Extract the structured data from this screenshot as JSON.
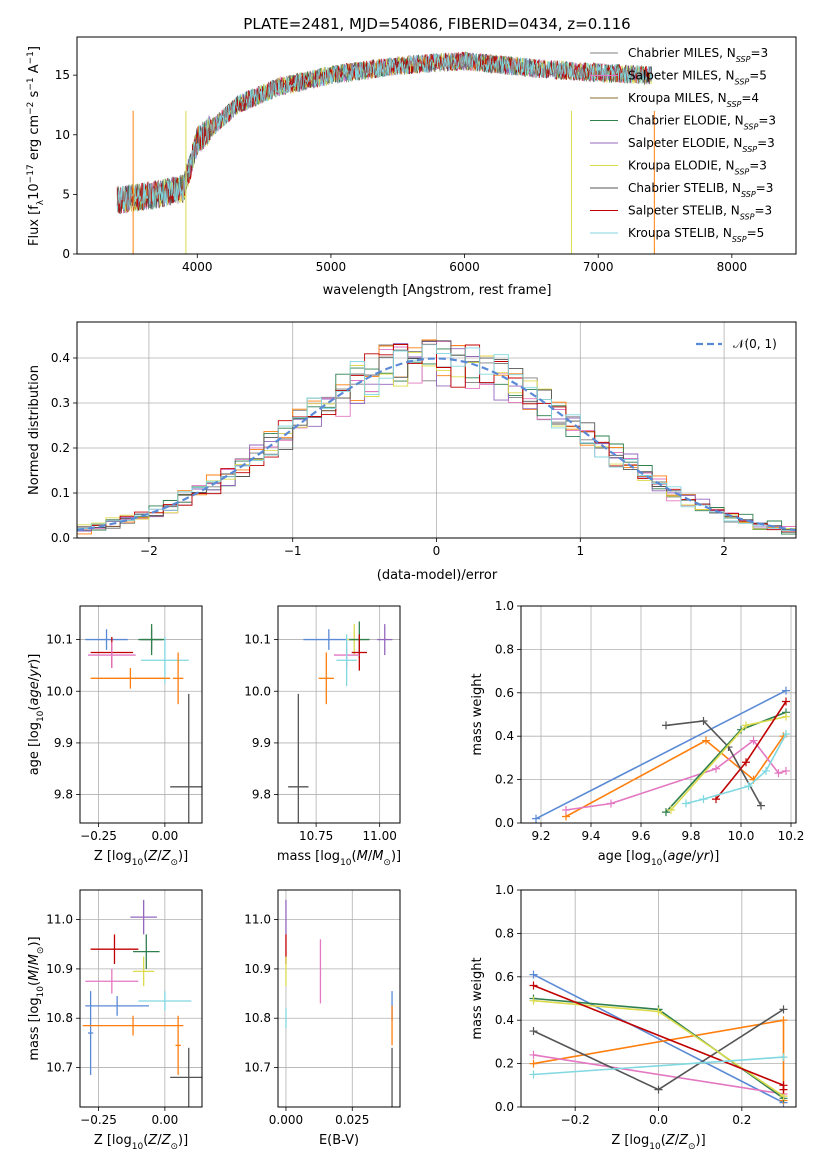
{
  "chart_data": [
    {
      "id": "spectrum",
      "type": "line",
      "title": "PLATE=2481, MJD=54086, FIBERID=0434, z=0.116",
      "xlabel": "wavelength [Angstrom, rest frame]",
      "ylabel": "Flux [fλ10^-17 erg cm^-2 s^-1 A^-1]",
      "xlim": [
        3100,
        8480
      ],
      "ylim": [
        0,
        18.2
      ],
      "xticks": [
        4000,
        5000,
        6000,
        7000,
        8000
      ],
      "yticks": [
        0,
        5,
        10,
        15
      ],
      "grid": false,
      "legend_position": "top-right",
      "continuum": {
        "x": [
          3400,
          3700,
          3900,
          4000,
          4300,
          4600,
          5000,
          5500,
          6000,
          6500,
          7000,
          7400
        ],
        "y": [
          4.5,
          5.0,
          5.5,
          9.5,
          12.5,
          14.0,
          15.0,
          15.8,
          16.2,
          15.6,
          15.2,
          15.0
        ]
      },
      "series": [
        {
          "name": "Chabrier MILES, N_SSP=3",
          "color": "#7f7f7f"
        },
        {
          "name": "Salpeter MILES, N_SSP=5",
          "color": "#e377c2"
        },
        {
          "name": "Kroupa MILES, N_SSP=4",
          "color": "#8c6d31"
        },
        {
          "name": "Chabrier ELODIE, N_SSP=3",
          "color": "#2f7f4f"
        },
        {
          "name": "Salpeter ELODIE, N_SSP=3",
          "color": "#9467bd"
        },
        {
          "name": "Kroupa ELODIE, N_SSP=3",
          "color": "#dbdb4d"
        },
        {
          "name": "Chabrier STELIB, N_SSP=3",
          "color": "#555555"
        },
        {
          "name": "Salpeter STELIB, N_SSP=3",
          "color": "#c00000"
        },
        {
          "name": "Kroupa STELIB, N_SSP=5",
          "color": "#80d8e0"
        }
      ],
      "legend_labels": [
        {
          "main": "Chabrier MILES, N",
          "sub": "SSP",
          "suffix": "=3"
        },
        {
          "main": "Salpeter MILES, N",
          "sub": "SSP",
          "suffix": "=5"
        },
        {
          "main": "Kroupa MILES, N",
          "sub": "SSP",
          "suffix": "=4"
        },
        {
          "main": "Chabrier ELODIE, N",
          "sub": "SSP",
          "suffix": "=3"
        },
        {
          "main": "Salpeter ELODIE, N",
          "sub": "SSP",
          "suffix": "=3"
        },
        {
          "main": "Kroupa ELODIE, N",
          "sub": "SSP",
          "suffix": "=3"
        },
        {
          "main": "Chabrier STELIB, N",
          "sub": "SSP",
          "suffix": "=3"
        },
        {
          "main": "Salpeter STELIB, N",
          "sub": "SSP",
          "suffix": "=3"
        },
        {
          "main": "Kroupa STELIB, N",
          "sub": "SSP",
          "suffix": "=5"
        }
      ]
    },
    {
      "id": "residuals",
      "type": "line",
      "xlabel": "(data-model)/error",
      "ylabel": "Normed distribution",
      "xlim": [
        -2.5,
        2.5
      ],
      "ylim": [
        0,
        0.48
      ],
      "xticks": [
        -2,
        -1,
        0,
        1,
        2
      ],
      "yticks": [
        0.0,
        0.1,
        0.2,
        0.3,
        0.4
      ],
      "grid": true,
      "legend_position": "top-right",
      "legend_label": "𝒩(0, 1)",
      "reference_color": "#5a8ad6",
      "bin_width": 0.1,
      "series_colors": [
        "#7f7f7f",
        "#e377c2",
        "#ff7f0e",
        "#2f7f4f",
        "#9467bd",
        "#dbdb4d",
        "#555555",
        "#c00000",
        "#80d8e0"
      ]
    },
    {
      "id": "age-vs-Z",
      "type": "scatter",
      "xlabel": "Z [log10(Z/Z⊙)]",
      "ylabel": "age  [log10(age/yr)]",
      "xlim": [
        -0.32,
        0.14
      ],
      "ylim": [
        9.745,
        10.165
      ],
      "xticks": [
        -0.25,
        0.0
      ],
      "yticks": [
        9.8,
        9.9,
        10.0,
        10.1
      ],
      "grid": true,
      "points": [
        {
          "x": -0.22,
          "y": 10.1,
          "xerr": 0.08,
          "yerr": 0.02,
          "color": "#5a8ad6"
        },
        {
          "x": -0.05,
          "y": 10.1,
          "xerr": 0.04,
          "yerr": 0.02,
          "color": "#7f7f7f"
        },
        {
          "x": -0.05,
          "y": 10.1,
          "xerr": 0.05,
          "yerr": 0.03,
          "color": "#2f7f4f"
        },
        {
          "x": -0.2,
          "y": 10.075,
          "xerr": 0.08,
          "yerr": 0.03,
          "color": "#c00000"
        },
        {
          "x": -0.2,
          "y": 10.07,
          "xerr": 0.09,
          "yerr": 0.025,
          "color": "#e377c2"
        },
        {
          "x": 0.0,
          "y": 10.06,
          "xerr": 0.09,
          "yerr": 0.045,
          "color": "#80d8e0"
        },
        {
          "x": -0.13,
          "y": 10.025,
          "xerr": 0.15,
          "yerr": 0.02,
          "color": "#ff7f0e"
        },
        {
          "x": 0.05,
          "y": 10.025,
          "xerr": 0.02,
          "yerr": 0.05,
          "color": "#ff7f0e"
        },
        {
          "x": 0.09,
          "y": 9.815,
          "xerr": 0.07,
          "yerr": 0.18,
          "color": "#555555"
        }
      ]
    },
    {
      "id": "age-vs-mass",
      "type": "scatter",
      "xlabel": "mass [log10(M/M⊙)]",
      "ylabel": "",
      "xlim": [
        10.6,
        11.08
      ],
      "ylim": [
        9.745,
        10.165
      ],
      "xticks": [
        10.75,
        11.0
      ],
      "yticks": [
        9.8,
        9.9,
        10.0,
        10.1
      ],
      "grid": true,
      "points": [
        {
          "x": 10.8,
          "y": 10.1,
          "xerr": 0.1,
          "yerr": 0.02,
          "color": "#5a8ad6"
        },
        {
          "x": 10.9,
          "y": 10.1,
          "xerr": 0.03,
          "yerr": 0.03,
          "color": "#dbdb4d"
        },
        {
          "x": 10.92,
          "y": 10.1,
          "xerr": 0.04,
          "yerr": 0.035,
          "color": "#2f7f4f"
        },
        {
          "x": 11.02,
          "y": 10.1,
          "xerr": 0.03,
          "yerr": 0.03,
          "color": "#9467bd"
        },
        {
          "x": 10.92,
          "y": 10.075,
          "xerr": 0.03,
          "yerr": 0.035,
          "color": "#c00000"
        },
        {
          "x": 10.87,
          "y": 10.07,
          "xerr": 0.05,
          "yerr": 0.025,
          "color": "#e377c2"
        },
        {
          "x": 10.87,
          "y": 10.06,
          "xerr": 0.04,
          "yerr": 0.05,
          "color": "#80d8e0"
        },
        {
          "x": 10.79,
          "y": 10.025,
          "xerr": 0.03,
          "yerr": 0.05,
          "color": "#ff7f0e"
        },
        {
          "x": 10.68,
          "y": 9.815,
          "xerr": 0.04,
          "yerr": 0.18,
          "color": "#555555"
        }
      ]
    },
    {
      "id": "weight-vs-age",
      "type": "line",
      "xlabel": "age  [log10(age/yr)]",
      "ylabel": "mass weight",
      "xlim": [
        9.12,
        10.22
      ],
      "ylim": [
        0,
        1.0
      ],
      "xticks": [
        9.2,
        9.4,
        9.6,
        9.8,
        10.0,
        10.2
      ],
      "yticks": [
        0.0,
        0.2,
        0.4,
        0.6,
        0.8,
        1.0
      ],
      "grid": true,
      "series": [
        {
          "color": "#5a8ad6",
          "x": [
            9.18,
            10.18
          ],
          "y": [
            0.02,
            0.61
          ]
        },
        {
          "color": "#ff7f0e",
          "x": [
            9.3,
            9.86,
            10.05,
            10.17
          ],
          "y": [
            0.03,
            0.38,
            0.2,
            0.4
          ]
        },
        {
          "color": "#e377c2",
          "x": [
            9.3,
            9.48,
            9.9,
            10.05,
            10.15,
            10.18
          ],
          "y": [
            0.06,
            0.09,
            0.25,
            0.38,
            0.23,
            0.24
          ]
        },
        {
          "color": "#555555",
          "x": [
            9.7,
            9.85,
            9.95,
            10.08
          ],
          "y": [
            0.45,
            0.47,
            0.35,
            0.08
          ]
        },
        {
          "color": "#2f7f4f",
          "x": [
            9.7,
            10.0,
            10.18
          ],
          "y": [
            0.05,
            0.43,
            0.51
          ]
        },
        {
          "color": "#dbdb4d",
          "x": [
            9.72,
            10.02,
            10.18
          ],
          "y": [
            0.06,
            0.45,
            0.49
          ]
        },
        {
          "color": "#c00000",
          "x": [
            9.9,
            10.02,
            10.18
          ],
          "y": [
            0.11,
            0.28,
            0.56
          ]
        },
        {
          "color": "#80d8e0",
          "x": [
            9.78,
            9.85,
            10.03,
            10.1,
            10.18
          ],
          "y": [
            0.09,
            0.11,
            0.17,
            0.24,
            0.41
          ]
        }
      ]
    },
    {
      "id": "mass-vs-Z",
      "type": "scatter",
      "xlabel": "Z [log10(Z/Z⊙)]",
      "ylabel": "mass [log10(M/M⊙)]",
      "xlim": [
        -0.32,
        0.14
      ],
      "ylim": [
        10.62,
        11.06
      ],
      "xticks": [
        -0.25,
        0.0
      ],
      "yticks": [
        10.7,
        10.8,
        10.9,
        11.0
      ],
      "grid": true,
      "points": [
        {
          "x": -0.08,
          "y": 11.005,
          "xerr": 0.05,
          "yerr": 0.035,
          "color": "#9467bd"
        },
        {
          "x": -0.19,
          "y": 10.94,
          "xerr": 0.09,
          "yerr": 0.03,
          "color": "#c00000"
        },
        {
          "x": -0.07,
          "y": 10.935,
          "xerr": 0.05,
          "yerr": 0.035,
          "color": "#2f7f4f"
        },
        {
          "x": -0.08,
          "y": 10.895,
          "xerr": 0.04,
          "yerr": 0.03,
          "color": "#dbdb4d"
        },
        {
          "x": -0.2,
          "y": 10.875,
          "xerr": 0.1,
          "yerr": 0.025,
          "color": "#e377c2"
        },
        {
          "x": 0.0,
          "y": 10.835,
          "xerr": 0.1,
          "yerr": 0.02,
          "color": "#80d8e0"
        },
        {
          "x": -0.18,
          "y": 10.825,
          "xerr": 0.12,
          "yerr": 0.02,
          "color": "#5a8ad6"
        },
        {
          "x": -0.28,
          "y": 10.77,
          "xerr": 0.01,
          "yerr": 0.085,
          "color": "#5a8ad6"
        },
        {
          "x": -0.12,
          "y": 10.785,
          "xerr": 0.19,
          "yerr": 0.02,
          "color": "#ff7f0e"
        },
        {
          "x": 0.05,
          "y": 10.745,
          "xerr": 0.01,
          "yerr": 0.06,
          "color": "#ff7f0e"
        },
        {
          "x": 0.09,
          "y": 10.68,
          "xerr": 0.07,
          "yerr": 0.06,
          "color": "#555555"
        }
      ]
    },
    {
      "id": "mass-vs-ebv",
      "type": "scatter",
      "xlabel": "E(B-V)",
      "ylabel": "",
      "xlim": [
        -0.003,
        0.043
      ],
      "ylim": [
        10.62,
        11.06
      ],
      "xticks": [
        0.0,
        0.025
      ],
      "yticks": [
        10.7,
        10.8,
        10.9,
        11.0
      ],
      "grid": true,
      "points": [
        {
          "x": 0.0,
          "y": 11.005,
          "xerr": 0,
          "yerr": 0.035,
          "color": "#9467bd"
        },
        {
          "x": 0.0,
          "y": 10.94,
          "xerr": 0,
          "yerr": 0.03,
          "color": "#c00000"
        },
        {
          "x": 0.0,
          "y": 10.895,
          "xerr": 0,
          "yerr": 0.03,
          "color": "#dbdb4d"
        },
        {
          "x": 0.0,
          "y": 10.8,
          "xerr": 0,
          "yerr": 0.02,
          "color": "#80d8e0"
        },
        {
          "x": 0.013,
          "y": 10.895,
          "xerr": 0,
          "yerr": 0.065,
          "color": "#e377c2"
        },
        {
          "x": 0.04,
          "y": 10.825,
          "xerr": 0,
          "yerr": 0.03,
          "color": "#5a8ad6"
        },
        {
          "x": 0.04,
          "y": 10.785,
          "xerr": 0,
          "yerr": 0.04,
          "color": "#ff7f0e"
        },
        {
          "x": 0.04,
          "y": 10.68,
          "xerr": 0,
          "yerr": 0.06,
          "color": "#555555"
        }
      ]
    },
    {
      "id": "weight-vs-Z",
      "type": "line",
      "xlabel": "Z [log10(Z/Z⊙)]",
      "ylabel": "mass weight",
      "xlim": [
        -0.33,
        0.33
      ],
      "ylim": [
        0,
        1.0
      ],
      "xticks": [
        -0.2,
        0.0,
        0.2
      ],
      "yticks": [
        0.0,
        0.2,
        0.4,
        0.6,
        0.8,
        1.0
      ],
      "grid": true,
      "series": [
        {
          "color": "#5a8ad6",
          "x": [
            -0.3,
            0.3
          ],
          "y": [
            0.61,
            0.02
          ]
        },
        {
          "color": "#ff7f0e",
          "x": [
            -0.3,
            0.3,
            0.3
          ],
          "y": [
            0.2,
            0.4,
            0.03
          ]
        },
        {
          "color": "#e377c2",
          "x": [
            -0.3,
            0.3
          ],
          "y": [
            0.24,
            0.06
          ]
        },
        {
          "color": "#555555",
          "x": [
            -0.3,
            0.0,
            0.3
          ],
          "y": [
            0.35,
            0.08,
            0.45
          ]
        },
        {
          "color": "#2f7f4f",
          "x": [
            -0.3,
            0.0,
            0.3
          ],
          "y": [
            0.5,
            0.45,
            0.04
          ]
        },
        {
          "color": "#dbdb4d",
          "x": [
            -0.3,
            0.0,
            0.3
          ],
          "y": [
            0.49,
            0.44,
            0.05
          ]
        },
        {
          "color": "#c00000",
          "x": [
            -0.3,
            0.3,
            0.3
          ],
          "y": [
            0.56,
            0.1,
            0.08
          ]
        },
        {
          "color": "#80d8e0",
          "x": [
            -0.3,
            0.3
          ],
          "y": [
            0.15,
            0.23
          ]
        }
      ]
    }
  ]
}
